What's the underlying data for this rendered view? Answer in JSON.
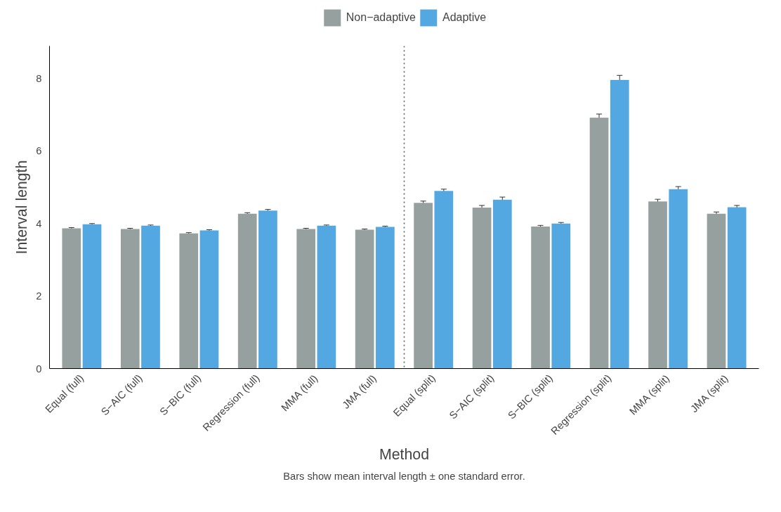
{
  "chart_data": {
    "type": "bar",
    "xlabel": "Method",
    "ylabel": "Interval length",
    "categories": [
      "Equal (full)",
      "S−AIC (full)",
      "S−BIC (full)",
      "Regression (full)",
      "MMA (full)",
      "JMA (full)",
      "Equal (split)",
      "S−AIC (split)",
      "S−BIC (split)",
      "Regression (split)",
      "MMA (split)",
      "JMA (split)"
    ],
    "series": [
      {
        "name": "Non−adaptive",
        "color": "#95a09f",
        "values": [
          3.87,
          3.85,
          3.73,
          4.27,
          3.85,
          3.83,
          4.57,
          4.44,
          3.92,
          6.92,
          4.61,
          4.27
        ],
        "errors": [
          0.02,
          0.02,
          0.02,
          0.03,
          0.02,
          0.02,
          0.05,
          0.06,
          0.03,
          0.1,
          0.06,
          0.05
        ]
      },
      {
        "name": "Adaptive",
        "color": "#53a8e2",
        "values": [
          3.98,
          3.94,
          3.81,
          4.36,
          3.94,
          3.91,
          4.9,
          4.66,
          4.0,
          7.96,
          4.95,
          4.45
        ],
        "errors": [
          0.02,
          0.02,
          0.02,
          0.03,
          0.02,
          0.02,
          0.05,
          0.07,
          0.03,
          0.13,
          0.07,
          0.05
        ]
      }
    ],
    "ylim": [
      0,
      8.9
    ],
    "yticks": [
      0,
      2,
      4,
      6,
      8
    ],
    "grid": false,
    "legend": "top",
    "annotations": [
      "Bars show mean interval length ± one standard error."
    ]
  }
}
